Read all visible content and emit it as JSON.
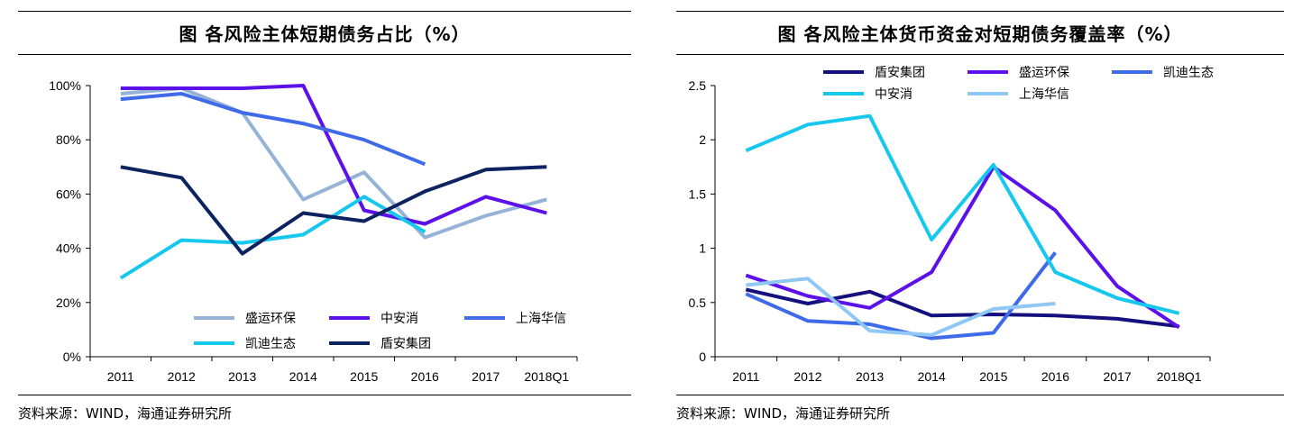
{
  "left": {
    "title": "图 各风险主体短期债务占比（%）",
    "source": "资料来源：WIND，海通证券研究所"
  },
  "right": {
    "title": "图 各风险主体货币资金对短期债务覆盖率（%）",
    "source": "资料来源：WIND，海通证券研究所"
  },
  "chart_data": [
    {
      "type": "line",
      "title": "图 各风险主体短期债务占比（%）",
      "categories": [
        "2011",
        "2012",
        "2013",
        "2014",
        "2015",
        "2016",
        "2017",
        "2018Q1"
      ],
      "ylim": [
        0,
        100
      ],
      "yticks": [
        0,
        20,
        40,
        60,
        80,
        100
      ],
      "ytick_labels": [
        "0%",
        "20%",
        "40%",
        "60%",
        "80%",
        "100%"
      ],
      "legend_position": "bottom",
      "series": [
        {
          "name": "盛运环保",
          "color": "#95b3d7",
          "values": [
            97,
            99,
            90,
            58,
            68,
            44,
            52,
            58
          ]
        },
        {
          "name": "中安消",
          "color": "#5b11e8",
          "values": [
            99,
            99,
            99,
            100,
            54,
            49,
            59,
            53
          ]
        },
        {
          "name": "上海华信",
          "color": "#3f6be8",
          "values": [
            95,
            97,
            90,
            86,
            80,
            71,
            null,
            null
          ]
        },
        {
          "name": "凯迪生态",
          "color": "#16c8ee",
          "values": [
            29,
            43,
            42,
            45,
            59,
            46,
            null,
            null
          ]
        },
        {
          "name": "盾安集团",
          "color": "#0c2360",
          "values": [
            70,
            66,
            38,
            53,
            50,
            61,
            69,
            70
          ]
        }
      ]
    },
    {
      "type": "line",
      "title": "图 各风险主体货币资金对短期债务覆盖率（%）",
      "categories": [
        "2011",
        "2012",
        "2013",
        "2014",
        "2015",
        "2016",
        "2017",
        "2018Q1"
      ],
      "ylim": [
        0,
        2.5
      ],
      "yticks": [
        0,
        0.5,
        1,
        1.5,
        2,
        2.5
      ],
      "ytick_labels": [
        "0",
        "0.5",
        "1",
        "1.5",
        "2",
        "2.5"
      ],
      "legend_position": "top",
      "series": [
        {
          "name": "盾安集团",
          "color": "#14107e",
          "values": [
            0.62,
            0.49,
            0.6,
            0.38,
            0.39,
            0.38,
            0.35,
            0.28
          ]
        },
        {
          "name": "盛运环保",
          "color": "#5b11e8",
          "values": [
            0.75,
            0.56,
            0.45,
            0.78,
            1.75,
            1.35,
            0.65,
            0.27
          ]
        },
        {
          "name": "凯迪生态",
          "color": "#3f6be8",
          "values": [
            0.58,
            0.33,
            0.3,
            0.17,
            0.22,
            0.96,
            null,
            null
          ]
        },
        {
          "name": "中安消",
          "color": "#16c8ee",
          "values": [
            1.9,
            2.14,
            2.22,
            1.08,
            1.77,
            0.78,
            0.54,
            0.4
          ]
        },
        {
          "name": "上海华信",
          "color": "#8fc8f5",
          "values": [
            0.66,
            0.72,
            0.24,
            0.2,
            0.44,
            0.49,
            null,
            null
          ]
        }
      ]
    }
  ]
}
